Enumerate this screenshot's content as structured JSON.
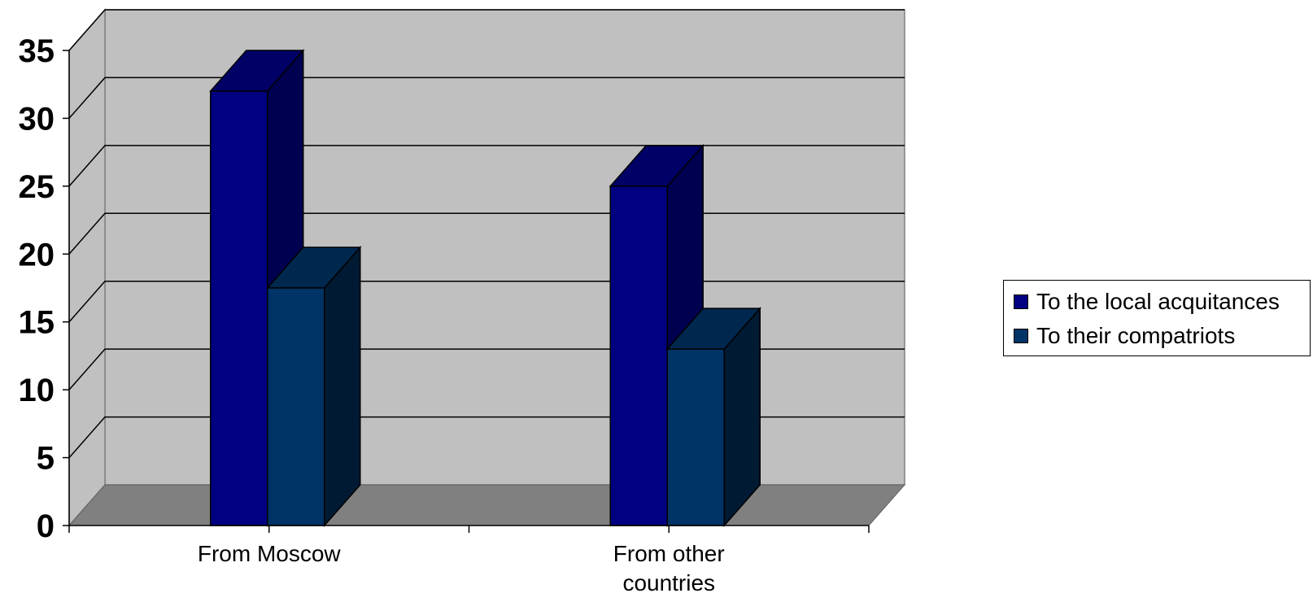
{
  "chart_data": {
    "type": "bar",
    "title": "",
    "xlabel": "",
    "ylabel": "",
    "categories": [
      [
        "From Moscow"
      ],
      [
        "From other",
        "countries"
      ]
    ],
    "series": [
      {
        "name": "To the local acquitances",
        "values": [
          32,
          25
        ],
        "color": "#000080",
        "side_color": "#000050",
        "top_color": "#000066"
      },
      {
        "name": "To their compatriots",
        "values": [
          17.5,
          13
        ],
        "color": "#003366",
        "side_color": "#001a33",
        "top_color": "#00284f"
      }
    ],
    "ylim": [
      0,
      35
    ],
    "yticks": [
      "0",
      "5",
      "10",
      "15",
      "20",
      "25",
      "30",
      "35"
    ],
    "grid": true,
    "three_d": true,
    "wall_color": "#c0c0c0",
    "floor_color": "#808080",
    "legend_position": "right"
  }
}
